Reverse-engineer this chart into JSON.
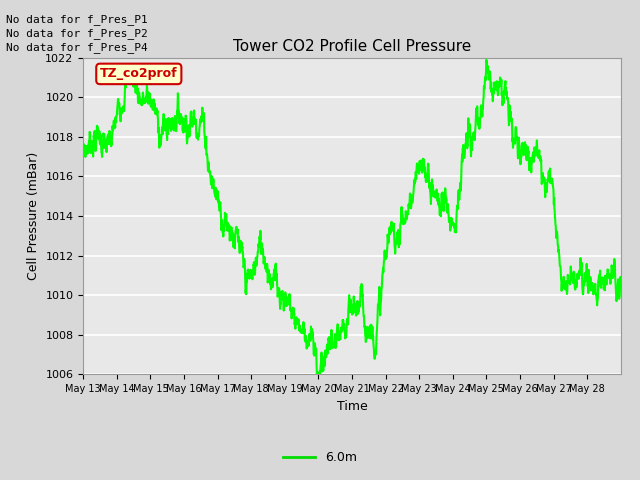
{
  "title": "Tower CO2 Profile Cell Pressure",
  "xlabel": "Time",
  "ylabel": "Cell Pressure (mBar)",
  "ylim": [
    1006,
    1022
  ],
  "plot_bg_color": "#e8e8e8",
  "fig_bg_color": "#d8d8d8",
  "line_color": "#00ff00",
  "line_width": 1.5,
  "legend_label": "6.0m",
  "legend_color": "#00dd00",
  "no_data_texts": [
    "No data for f_Pres_P1",
    "No data for f_Pres_P2",
    "No data for f_Pres_P4"
  ],
  "annotation_text": "TZ_co2prof",
  "annotation_bg": "#ffffcc",
  "annotation_border": "#cc0000",
  "annotation_text_color": "#cc0000",
  "xtick_labels": [
    "May 13",
    "May 14",
    "May 15",
    "May 16",
    "May 17",
    "May 18",
    "May 19",
    "May 20",
    "May 21",
    "May 22",
    "May 23",
    "May 24",
    "May 25",
    "May 26",
    "May 27",
    "May 28"
  ],
  "ytick_values": [
    1006,
    1008,
    1010,
    1012,
    1014,
    1016,
    1018,
    1020,
    1022
  ],
  "knots": [
    0.0,
    0.2,
    0.5,
    0.8,
    1.0,
    1.2,
    1.5,
    1.8,
    2.0,
    2.2,
    2.5,
    2.8,
    3.0,
    3.3,
    3.6,
    3.8,
    4.0,
    4.2,
    4.4,
    4.6,
    4.8,
    5.0,
    5.3,
    5.6,
    5.8,
    6.0,
    6.3,
    6.6,
    6.8,
    7.0,
    7.2,
    7.5,
    7.8,
    8.0,
    8.2,
    8.5,
    8.8,
    9.0,
    9.2,
    9.4,
    9.6,
    9.8,
    10.0,
    10.2,
    10.5,
    10.8,
    11.0,
    11.3,
    11.6,
    11.8,
    12.0,
    12.2,
    12.5,
    12.8,
    13.0,
    13.3,
    13.6,
    13.8,
    14.0,
    14.2,
    14.5,
    14.8,
    15.0,
    15.3,
    15.6,
    15.8,
    16.0
  ],
  "values": [
    1017.2,
    1017.8,
    1018.0,
    1017.5,
    1019.0,
    1020.5,
    1021.0,
    1019.8,
    1019.9,
    1018.8,
    1018.5,
    1019.2,
    1019.0,
    1018.8,
    1018.5,
    1016.0,
    1015.0,
    1014.0,
    1013.5,
    1012.5,
    1011.0,
    1010.8,
    1012.5,
    1011.0,
    1010.5,
    1010.0,
    1009.0,
    1008.2,
    1007.5,
    1006.3,
    1007.0,
    1007.5,
    1008.0,
    1009.0,
    1009.5,
    1008.5,
    1009.0,
    1012.0,
    1013.0,
    1013.5,
    1014.0,
    1015.0,
    1016.0,
    1016.3,
    1015.0,
    1014.5,
    1014.0,
    1016.5,
    1018.0,
    1018.5,
    1021.2,
    1021.0,
    1020.5,
    1018.0,
    1017.3,
    1017.5,
    1016.5,
    1016.2,
    1015.5,
    1011.5,
    1011.0,
    1011.0,
    1010.5,
    1010.8,
    1011.0,
    1010.8,
    1010.5
  ]
}
